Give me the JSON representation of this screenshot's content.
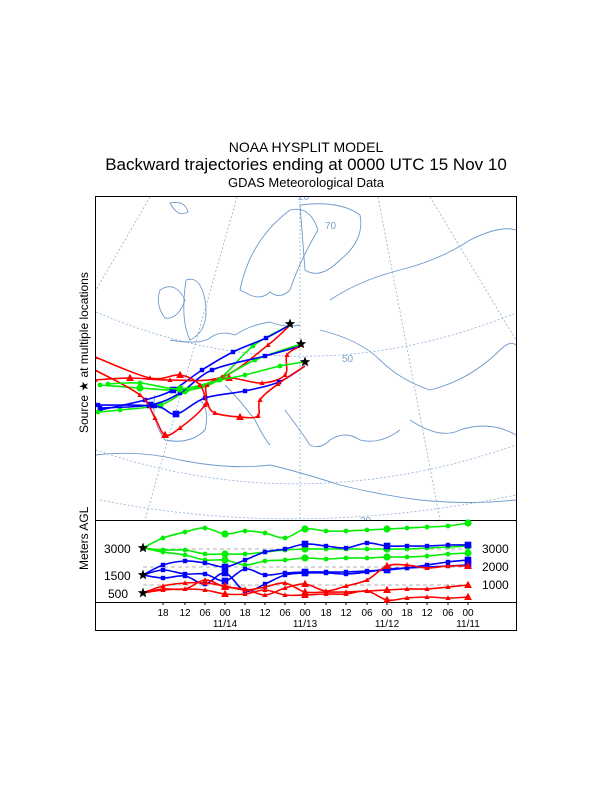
{
  "chart_data": {
    "type": "line",
    "title": "NOAA HYSPLIT MODEL",
    "subtitle": "Backward trajectories ending at 0000 UTC 15 Nov 10",
    "data_source": "GDAS Meteorological Data",
    "map_ylabel": "Source ★ at multiple locations",
    "profile_ylabel": "Meters AGL",
    "source_heights_left": [
      "3000",
      "1500",
      "500"
    ],
    "right_axis_ticks": [
      "3000",
      "2000",
      "1000"
    ],
    "x_tick_labels": [
      "18",
      "12",
      "06",
      "00",
      "18",
      "12",
      "06",
      "00",
      "18",
      "12",
      "06",
      "00",
      "18",
      "12",
      "06",
      "00"
    ],
    "x_date_labels": [
      "11/14",
      "11/13",
      "11/12",
      "11/11"
    ],
    "graticule_labels": [
      "20",
      "70",
      "50",
      "30"
    ],
    "series": [
      {
        "name": "500 m AGL",
        "color": "#ff0000",
        "marker": "triangle"
      },
      {
        "name": "1500 m AGL",
        "color": "#0000ff",
        "marker": "square"
      },
      {
        "name": "3000 m AGL",
        "color": "#00ee00",
        "marker": "circle"
      }
    ]
  }
}
